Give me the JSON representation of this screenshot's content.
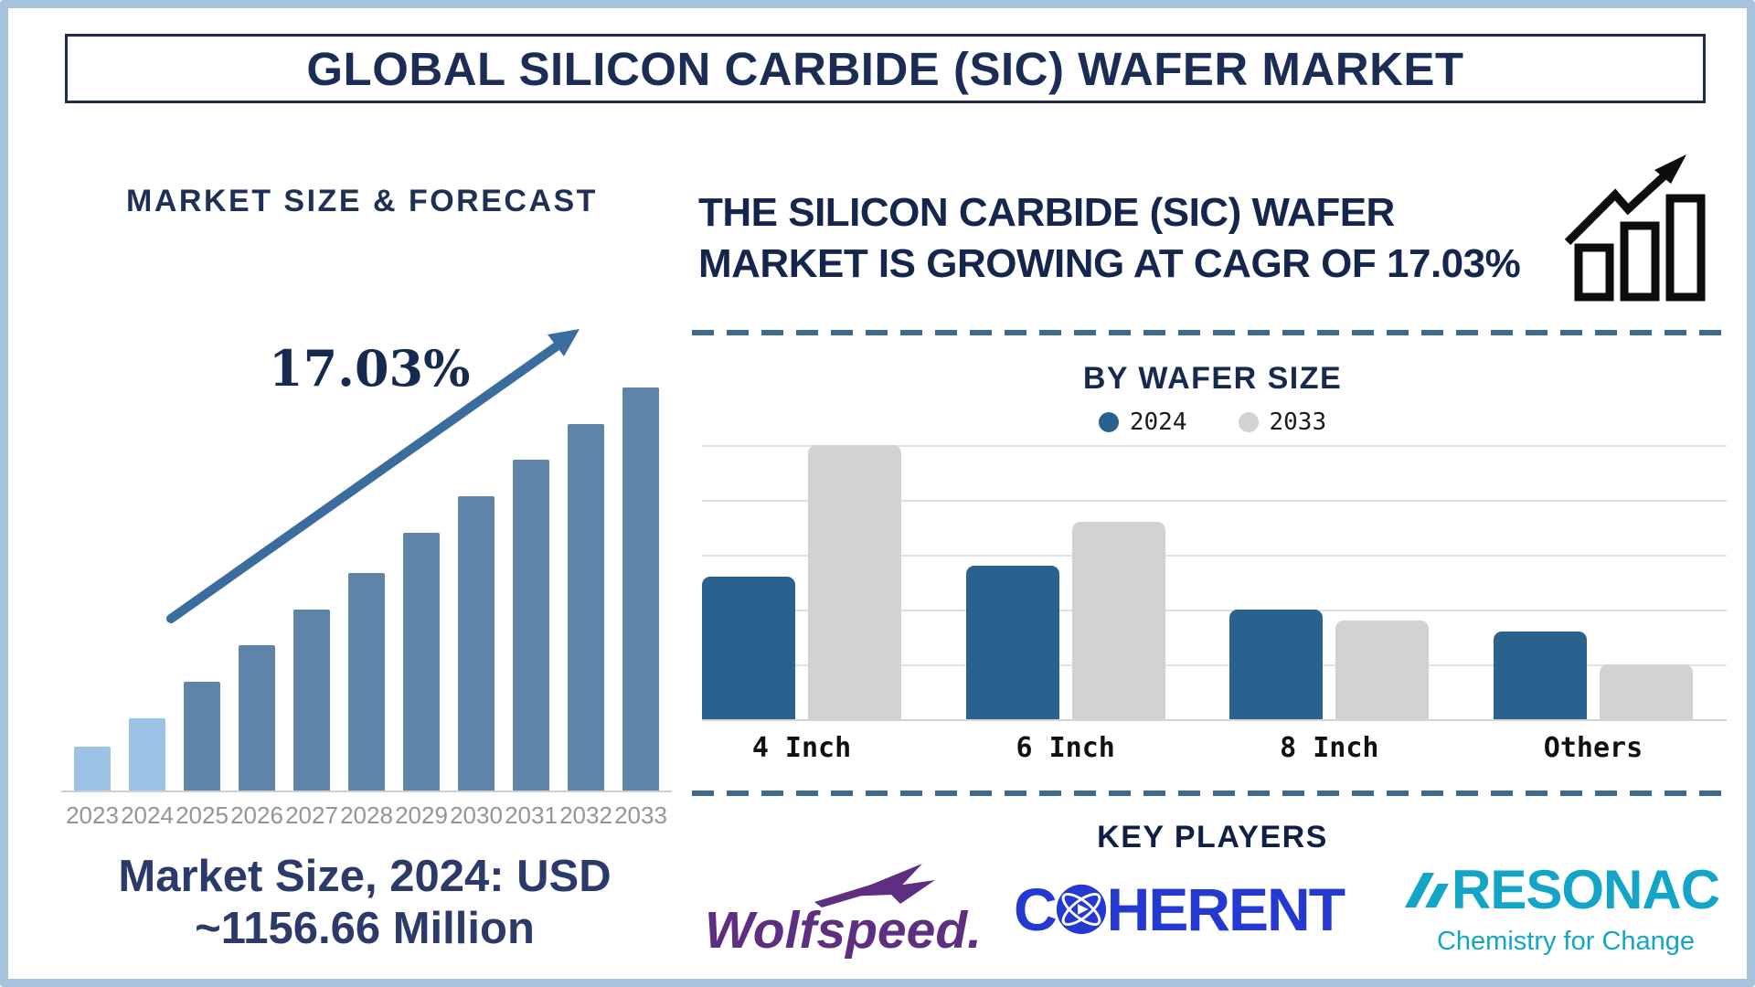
{
  "title": "GLOBAL SILICON CARBIDE (SIC) WAFER MARKET",
  "left_panel": {
    "heading": "MARKET SIZE & FORECAST",
    "cagr_label": "17.03%",
    "market_size_note_line1": "Market Size, 2024: USD",
    "market_size_note_line2": "~1156.66 Million"
  },
  "right_panel": {
    "headline_line1": "THE SILICON CARBIDE (SIC) WAFER",
    "headline_line2": "MARKET IS GROWING AT CAGR OF 17.03%",
    "wafer_section_title": "BY WAFER SIZE",
    "legend": [
      {
        "label": "2024",
        "color": "#29618f"
      },
      {
        "label": "2033",
        "color": "#d2d2d2"
      }
    ],
    "key_players_title": "KEY PLAYERS",
    "key_players": [
      {
        "name": "Wolfspeed.",
        "color": "#5e2f80"
      },
      {
        "name": "COHERENT",
        "c_part": "C",
        "rest_part": "HERENT",
        "color": "#2438d2"
      },
      {
        "name": "RESONAC",
        "tagline": "Chemistry for Change",
        "color": "#12a5c8"
      }
    ]
  },
  "chart_data": [
    {
      "type": "bar",
      "title": "MARKET SIZE & FORECAST",
      "categories": [
        "2023",
        "2024",
        "2025",
        "2026",
        "2027",
        "2028",
        "2029",
        "2030",
        "2031",
        "2032",
        "2033"
      ],
      "values_relative_height_pct": [
        11,
        18,
        27,
        36,
        45,
        54,
        64,
        73,
        82,
        91,
        100
      ],
      "highlighted_categories": [
        "2023",
        "2024"
      ],
      "annotation": "17.03%",
      "trend_arrow": true,
      "xlabel": "",
      "ylabel": "",
      "note": "No y-axis shown; bar heights are relative. 2024 bar anchored by caption value USD ~1156.66 Million."
    },
    {
      "type": "bar",
      "title": "BY WAFER SIZE",
      "categories": [
        "4 Inch",
        "6 Inch",
        "8 Inch",
        "Others"
      ],
      "series": [
        {
          "name": "2024",
          "values": [
            2.6,
            2.8,
            2.0,
            1.6
          ]
        },
        {
          "name": "2033",
          "values": [
            5.0,
            3.6,
            1.8,
            1.0
          ]
        }
      ],
      "ylim": [
        0,
        5
      ],
      "grid": true,
      "legend_position": "top",
      "xlabel": "",
      "ylabel": "",
      "note": "No y-axis labels; values estimated in gridline units (5 gridline intervals)."
    }
  ],
  "colors": {
    "navy_text": "#1b2c55",
    "left_bar": "#5e84aa",
    "left_bar_highlight": "#9cc2e5",
    "trend_arrow": "#3a6d9e",
    "bar_2024": "#29618f",
    "bar_2033": "#d2d2d2",
    "gridline": "#e0e0e0",
    "dashed_divider": "#3c6a91",
    "outer_frame": "#a8c3dd",
    "year_labels": "#949494",
    "wolfspeed_purple": "#5e2f80",
    "coherent_blue": "#2438d2",
    "resonac_teal": "#12a5c8"
  }
}
